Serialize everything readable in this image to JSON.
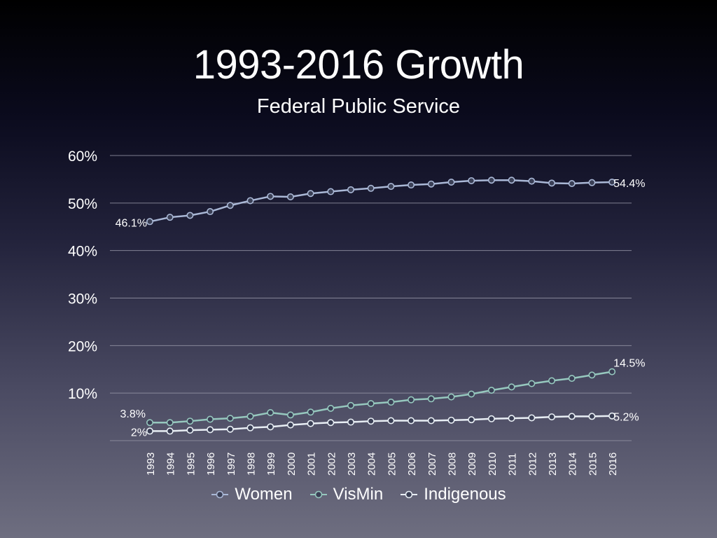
{
  "chart_data": {
    "type": "line",
    "title": "1993-2016 Growth",
    "subtitle": "Federal Public Service",
    "xlabel": "",
    "ylabel": "",
    "x": [
      "1993",
      "1994",
      "1995",
      "1996",
      "1997",
      "1998",
      "1999",
      "2000",
      "2001",
      "2002",
      "2003",
      "2004",
      "2005",
      "2006",
      "2007",
      "2008",
      "2009",
      "2010",
      "2011",
      "2012",
      "2013",
      "2014",
      "2015",
      "2016"
    ],
    "ylim": [
      0,
      60
    ],
    "yticks": [
      {
        "value": 10,
        "label": "10%"
      },
      {
        "value": 20,
        "label": "20%"
      },
      {
        "value": 30,
        "label": "30%"
      },
      {
        "value": 40,
        "label": "40%"
      },
      {
        "value": 50,
        "label": "50%"
      },
      {
        "value": 60,
        "label": "60%"
      }
    ],
    "grid": true,
    "legend": "bottom",
    "series": [
      {
        "name": "Women",
        "color": "#aab8d6",
        "values": [
          46.1,
          47.0,
          47.4,
          48.2,
          49.5,
          50.5,
          51.4,
          51.3,
          52.0,
          52.4,
          52.8,
          53.1,
          53.5,
          53.8,
          54.0,
          54.4,
          54.7,
          54.8,
          54.8,
          54.6,
          54.2,
          54.1,
          54.3,
          54.4
        ],
        "labels": [
          {
            "index": 0,
            "text": "46.1%",
            "side": "left"
          },
          {
            "index": 23,
            "text": "54.4%",
            "side": "right"
          }
        ]
      },
      {
        "name": "VisMin",
        "color": "#96c8be",
        "values": [
          3.8,
          3.8,
          4.1,
          4.5,
          4.7,
          5.1,
          5.9,
          5.4,
          6.0,
          6.8,
          7.4,
          7.8,
          8.1,
          8.6,
          8.8,
          9.2,
          9.8,
          10.6,
          11.3,
          12.0,
          12.6,
          13.1,
          13.8,
          14.5
        ],
        "labels": [
          {
            "index": 0,
            "text": "3.8%",
            "side": "left-above"
          },
          {
            "index": 23,
            "text": "14.5%",
            "side": "right-above"
          }
        ]
      },
      {
        "name": "Indigenous",
        "color": "#e8eef4",
        "values": [
          2.0,
          2.0,
          2.2,
          2.3,
          2.4,
          2.7,
          2.9,
          3.3,
          3.6,
          3.8,
          3.9,
          4.1,
          4.2,
          4.2,
          4.2,
          4.3,
          4.4,
          4.6,
          4.7,
          4.8,
          5.0,
          5.1,
          5.1,
          5.2
        ],
        "labels": [
          {
            "index": 0,
            "text": "2%",
            "side": "left"
          },
          {
            "index": 23,
            "text": "5.2%",
            "side": "right"
          }
        ]
      }
    ]
  }
}
